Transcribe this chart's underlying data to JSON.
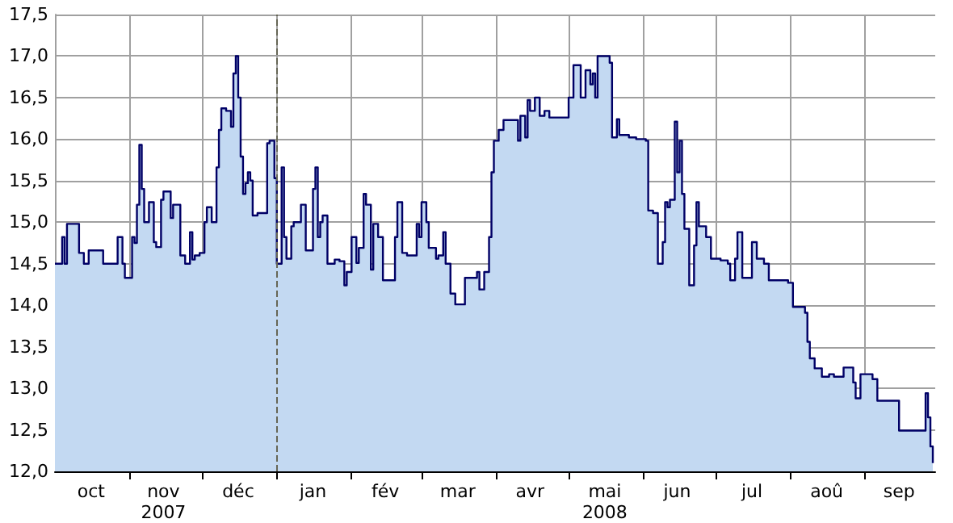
{
  "chart_data": {
    "type": "area",
    "x": [
      "2007-10-01",
      "2007-10-03",
      "2007-10-04",
      "2007-10-05",
      "2007-10-06",
      "2007-10-09",
      "2007-10-11",
      "2007-10-13",
      "2007-10-15",
      "2007-10-18",
      "2007-10-21",
      "2007-10-26",
      "2007-10-27",
      "2007-10-29",
      "2007-10-30",
      "2007-10-31",
      "2007-11-02",
      "2007-11-03",
      "2007-11-04",
      "2007-11-05",
      "2007-11-06",
      "2007-11-07",
      "2007-11-09",
      "2007-11-11",
      "2007-11-12",
      "2007-11-14",
      "2007-11-15",
      "2007-11-18",
      "2007-11-19",
      "2007-11-22",
      "2007-11-24",
      "2007-11-26",
      "2007-11-27",
      "2007-11-28",
      "2007-11-30",
      "2007-12-02",
      "2007-12-03",
      "2007-12-05",
      "2007-12-07",
      "2007-12-08",
      "2007-12-09",
      "2007-12-11",
      "2007-12-13",
      "2007-12-14",
      "2007-12-15",
      "2007-12-16",
      "2007-12-17",
      "2007-12-18",
      "2007-12-19",
      "2007-12-20",
      "2007-12-21",
      "2007-12-22",
      "2007-12-24",
      "2007-12-27",
      "2007-12-28",
      "2007-12-29",
      "2007-12-31",
      "2008-01-01",
      "2008-01-02",
      "2008-01-03",
      "2008-01-04",
      "2008-01-05",
      "2008-01-07",
      "2008-01-08",
      "2008-01-10",
      "2008-01-11",
      "2008-01-13",
      "2008-01-15",
      "2008-01-16",
      "2008-01-17",
      "2008-01-18",
      "2008-01-19",
      "2008-01-20",
      "2008-01-22",
      "2008-01-25",
      "2008-01-27",
      "2008-01-29",
      "2008-01-30",
      "2008-02-01",
      "2008-02-03",
      "2008-02-04",
      "2008-02-06",
      "2008-02-07",
      "2008-02-09",
      "2008-02-10",
      "2008-02-12",
      "2008-02-14",
      "2008-02-17",
      "2008-02-19",
      "2008-02-20",
      "2008-02-22",
      "2008-02-24",
      "2008-02-27",
      "2008-02-28",
      "2008-02-29",
      "2008-03-01",
      "2008-03-03",
      "2008-03-04",
      "2008-03-07",
      "2008-03-08",
      "2008-03-10",
      "2008-03-11",
      "2008-03-13",
      "2008-03-15",
      "2008-03-18",
      "2008-03-19",
      "2008-03-23",
      "2008-03-24",
      "2008-03-25",
      "2008-03-27",
      "2008-03-29",
      "2008-03-30",
      "2008-03-31",
      "2008-04-02",
      "2008-04-04",
      "2008-04-07",
      "2008-04-10",
      "2008-04-11",
      "2008-04-13",
      "2008-04-14",
      "2008-04-15",
      "2008-04-17",
      "2008-04-19",
      "2008-04-21",
      "2008-04-23",
      "2008-04-30",
      "2008-05-01",
      "2008-05-03",
      "2008-05-05",
      "2008-05-06",
      "2008-05-08",
      "2008-05-10",
      "2008-05-11",
      "2008-05-12",
      "2008-05-13",
      "2008-05-16",
      "2008-05-18",
      "2008-05-19",
      "2008-05-21",
      "2008-05-22",
      "2008-05-26",
      "2008-05-29",
      "2008-06-02",
      "2008-06-03",
      "2008-06-05",
      "2008-06-07",
      "2008-06-09",
      "2008-06-10",
      "2008-06-11",
      "2008-06-12",
      "2008-06-14",
      "2008-06-15",
      "2008-06-16",
      "2008-06-17",
      "2008-06-18",
      "2008-06-20",
      "2008-06-22",
      "2008-06-23",
      "2008-06-24",
      "2008-06-27",
      "2008-06-29",
      "2008-07-03",
      "2008-07-06",
      "2008-07-07",
      "2008-07-09",
      "2008-07-10",
      "2008-07-12",
      "2008-07-15",
      "2008-07-16",
      "2008-07-18",
      "2008-07-21",
      "2008-07-23",
      "2008-07-31",
      "2008-08-02",
      "2008-08-05",
      "2008-08-07",
      "2008-08-08",
      "2008-08-09",
      "2008-08-11",
      "2008-08-14",
      "2008-08-16",
      "2008-08-17",
      "2008-08-19",
      "2008-08-23",
      "2008-08-25",
      "2008-08-27",
      "2008-08-28",
      "2008-08-30",
      "2008-09-02",
      "2008-09-04",
      "2008-09-06",
      "2008-09-14",
      "2008-09-15",
      "2008-09-24",
      "2008-09-26",
      "2008-09-27",
      "2008-09-28",
      "2008-09-29"
    ],
    "series": [
      {
        "color": "#c3d9f2",
        "values": [
          14.5,
          14.5,
          14.82,
          14.5,
          14.98,
          14.98,
          14.63,
          14.5,
          14.66,
          14.66,
          14.5,
          14.5,
          14.82,
          14.5,
          14.33,
          14.33,
          14.82,
          14.75,
          15.21,
          15.93,
          15.4,
          15.0,
          15.24,
          14.76,
          14.7,
          15.27,
          15.37,
          15.05,
          15.21,
          14.6,
          14.5,
          14.88,
          14.55,
          14.6,
          14.63,
          15.0,
          15.18,
          15.0,
          15.66,
          16.11,
          16.37,
          16.34,
          16.15,
          16.79,
          17.0,
          16.5,
          15.79,
          15.34,
          15.47,
          15.6,
          15.5,
          15.08,
          15.11,
          15.11,
          15.95,
          15.98,
          15.53,
          14.5,
          14.5,
          15.66,
          14.82,
          14.56,
          14.95,
          15.0,
          15.0,
          15.21,
          14.66,
          14.66,
          15.4,
          15.66,
          14.82,
          15.0,
          15.08,
          14.5,
          14.55,
          14.53,
          14.24,
          14.4,
          14.82,
          14.51,
          14.69,
          15.34,
          15.21,
          14.43,
          14.98,
          14.82,
          14.3,
          14.3,
          14.82,
          15.24,
          14.63,
          14.6,
          14.6,
          14.98,
          14.82,
          15.24,
          15.0,
          14.69,
          14.56,
          14.6,
          14.88,
          14.5,
          14.14,
          14.01,
          14.01,
          14.33,
          14.33,
          14.4,
          14.19,
          14.4,
          14.82,
          15.6,
          15.98,
          16.11,
          16.23,
          16.23,
          15.98,
          16.28,
          16.02,
          16.47,
          16.34,
          16.5,
          16.28,
          16.34,
          16.26,
          16.26,
          16.5,
          16.89,
          16.89,
          16.5,
          16.83,
          16.66,
          16.79,
          16.5,
          17.0,
          17.0,
          16.92,
          16.02,
          16.24,
          16.05,
          16.02,
          16.0,
          15.98,
          15.14,
          15.11,
          14.5,
          14.76,
          15.24,
          15.18,
          15.27,
          16.21,
          15.6,
          15.98,
          15.34,
          14.92,
          14.24,
          14.72,
          15.24,
          14.95,
          14.82,
          14.56,
          14.54,
          14.5,
          14.3,
          14.56,
          14.88,
          14.33,
          14.33,
          14.76,
          14.56,
          14.5,
          14.3,
          14.27,
          13.98,
          13.98,
          13.91,
          13.56,
          13.36,
          13.24,
          13.14,
          13.14,
          13.17,
          13.14,
          13.25,
          13.25,
          13.07,
          12.88,
          13.17,
          13.17,
          13.11,
          12.85,
          12.85,
          12.49,
          12.49,
          12.94,
          12.65,
          12.3,
          12.1
        ]
      },
      {
        "type": "step",
        "color": "#000066",
        "values": [
          14.5,
          14.5,
          14.82,
          14.5,
          14.98,
          14.98,
          14.63,
          14.5,
          14.66,
          14.66,
          14.5,
          14.5,
          14.82,
          14.5,
          14.33,
          14.33,
          14.82,
          14.75,
          15.21,
          15.93,
          15.4,
          15.0,
          15.24,
          14.76,
          14.7,
          15.27,
          15.37,
          15.05,
          15.21,
          14.6,
          14.5,
          14.88,
          14.55,
          14.6,
          14.63,
          15.0,
          15.18,
          15.0,
          15.66,
          16.11,
          16.37,
          16.34,
          16.15,
          16.79,
          17.0,
          16.5,
          15.79,
          15.34,
          15.47,
          15.6,
          15.5,
          15.08,
          15.11,
          15.11,
          15.95,
          15.98,
          15.53,
          14.5,
          14.5,
          15.66,
          14.82,
          14.56,
          14.95,
          15.0,
          15.0,
          15.21,
          14.66,
          14.66,
          15.4,
          15.66,
          14.82,
          15.0,
          15.08,
          14.5,
          14.55,
          14.53,
          14.24,
          14.4,
          14.82,
          14.51,
          14.69,
          15.34,
          15.21,
          14.43,
          14.98,
          14.82,
          14.3,
          14.3,
          14.82,
          15.24,
          14.63,
          14.6,
          14.6,
          14.98,
          14.82,
          15.24,
          15.0,
          14.69,
          14.56,
          14.6,
          14.88,
          14.5,
          14.14,
          14.01,
          14.01,
          14.33,
          14.33,
          14.4,
          14.19,
          14.4,
          14.82,
          15.6,
          15.98,
          16.11,
          16.23,
          16.23,
          15.98,
          16.28,
          16.02,
          16.47,
          16.34,
          16.5,
          16.28,
          16.34,
          16.26,
          16.26,
          16.5,
          16.89,
          16.89,
          16.5,
          16.83,
          16.66,
          16.79,
          16.5,
          17.0,
          17.0,
          16.92,
          16.02,
          16.24,
          16.05,
          16.02,
          16.0,
          15.98,
          15.14,
          15.11,
          14.5,
          14.76,
          15.24,
          15.18,
          15.27,
          16.21,
          15.6,
          15.98,
          15.34,
          14.92,
          14.24,
          14.72,
          15.24,
          14.95,
          14.82,
          14.56,
          14.54,
          14.5,
          14.3,
          14.56,
          14.88,
          14.33,
          14.33,
          14.76,
          14.56,
          14.5,
          14.3,
          14.27,
          13.98,
          13.98,
          13.91,
          13.56,
          13.36,
          13.24,
          13.14,
          13.14,
          13.17,
          13.14,
          13.25,
          13.25,
          13.07,
          12.88,
          13.17,
          13.17,
          13.11,
          12.85,
          12.85,
          12.49,
          12.49,
          12.94,
          12.65,
          12.3,
          12.1
        ]
      }
    ],
    "xlim": [
      "2007-10-01",
      "2008-09-30"
    ],
    "xticks": [
      {
        "value": "2007-10-16",
        "label": "oct"
      },
      {
        "value": "2007-11-01",
        "label": null
      },
      {
        "value": "2007-11-15",
        "label": "nov\n2007"
      },
      {
        "value": "2007-12-01",
        "label": null
      },
      {
        "value": "2007-12-16",
        "label": "déc"
      },
      {
        "value": "2008-01-01",
        "label": null
      },
      {
        "value": "2008-01-16",
        "label": "jan"
      },
      {
        "value": "2008-02-01",
        "label": null
      },
      {
        "value": "2008-02-15",
        "label": "fév"
      },
      {
        "value": "2008-03-01",
        "label": null
      },
      {
        "value": "2008-03-16",
        "label": "mar"
      },
      {
        "value": "2008-04-01",
        "label": null
      },
      {
        "value": "2008-04-15",
        "label": "avr"
      },
      {
        "value": "2008-05-01",
        "label": null
      },
      {
        "value": "2008-05-16",
        "label": "mai\n2008"
      },
      {
        "value": "2008-06-01",
        "label": null
      },
      {
        "value": "2008-06-15",
        "label": "jun"
      },
      {
        "value": "2008-07-01",
        "label": null
      },
      {
        "value": "2008-07-16",
        "label": "jul"
      },
      {
        "value": "2008-08-01",
        "label": null
      },
      {
        "value": "2008-08-16",
        "label": "aoû"
      },
      {
        "value": "2008-09-01",
        "label": null
      },
      {
        "value": "2008-09-15",
        "label": "sep"
      }
    ],
    "ylim": [
      12,
      17.5
    ],
    "yticks": [
      {
        "value": 12,
        "label": "12,0"
      },
      {
        "value": 12.5,
        "label": "12,5"
      },
      {
        "value": 13,
        "label": "13,0"
      },
      {
        "value": 13.5,
        "label": "13,5"
      },
      {
        "value": 14,
        "label": "14,0"
      },
      {
        "value": 14.5,
        "label": "14,5"
      },
      {
        "value": 15,
        "label": "15,0"
      },
      {
        "value": 15.5,
        "label": "15,5"
      },
      {
        "value": 16,
        "label": "16,0"
      },
      {
        "value": 16.5,
        "label": "16,5"
      },
      {
        "value": 17,
        "label": "17,0"
      },
      {
        "value": 17.5,
        "label": "17,5"
      }
    ],
    "grid": true,
    "ref_lines": [
      {
        "axis": "x",
        "value": "2008-01-01",
        "color": "#666655",
        "line_style": "dashed"
      }
    ]
  }
}
